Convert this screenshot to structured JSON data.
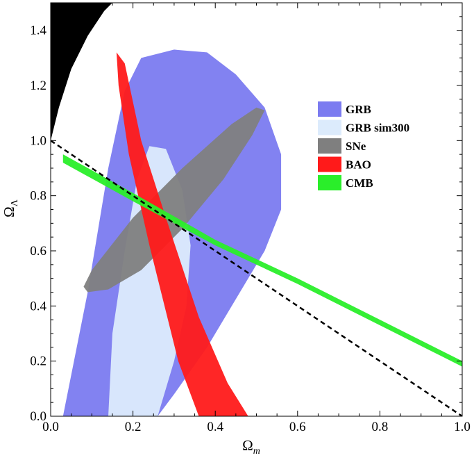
{
  "chart_data": {
    "type": "contour",
    "title": "",
    "xlabel": "Ω",
    "xlabel_sub": "m",
    "ylabel": "Ω",
    "ylabel_sub": "Λ",
    "xlim": [
      0.0,
      1.0
    ],
    "ylim": [
      0.0,
      1.5
    ],
    "x_ticks": [
      "0.0",
      "0.2",
      "0.4",
      "0.6",
      "0.8",
      "1.0"
    ],
    "y_ticks": [
      "0.0",
      "0.2",
      "0.4",
      "0.6",
      "0.8",
      "1.0",
      "1.2",
      "1.4"
    ],
    "grid": false,
    "legend_position": "right",
    "series": [
      {
        "name": "GRB",
        "color": "#7b7bf0",
        "points": [
          [
            0.03,
            0.0
          ],
          [
            0.09,
            0.45
          ],
          [
            0.14,
            0.9
          ],
          [
            0.18,
            1.18
          ],
          [
            0.22,
            1.3
          ],
          [
            0.3,
            1.33
          ],
          [
            0.38,
            1.32
          ],
          [
            0.45,
            1.24
          ],
          [
            0.52,
            1.12
          ],
          [
            0.56,
            0.95
          ],
          [
            0.56,
            0.75
          ],
          [
            0.52,
            0.6
          ],
          [
            0.46,
            0.45
          ],
          [
            0.38,
            0.25
          ],
          [
            0.3,
            0.08
          ],
          [
            0.26,
            0.0
          ]
        ]
      },
      {
        "name": "GRB sim300",
        "color": "#dcebfc",
        "points": [
          [
            0.14,
            0.0
          ],
          [
            0.15,
            0.3
          ],
          [
            0.18,
            0.6
          ],
          [
            0.21,
            0.86
          ],
          [
            0.24,
            0.98
          ],
          [
            0.28,
            0.97
          ],
          [
            0.32,
            0.82
          ],
          [
            0.34,
            0.62
          ],
          [
            0.33,
            0.4
          ],
          [
            0.3,
            0.2
          ],
          [
            0.26,
            0.0
          ]
        ]
      },
      {
        "name": "SNe",
        "color": "#7f7f7f",
        "points": [
          [
            0.09,
            0.45
          ],
          [
            0.14,
            0.46
          ],
          [
            0.22,
            0.53
          ],
          [
            0.32,
            0.68
          ],
          [
            0.42,
            0.86
          ],
          [
            0.49,
            1.02
          ],
          [
            0.52,
            1.11
          ],
          [
            0.5,
            1.12
          ],
          [
            0.44,
            1.06
          ],
          [
            0.32,
            0.9
          ],
          [
            0.2,
            0.72
          ],
          [
            0.1,
            0.53
          ],
          [
            0.08,
            0.47
          ]
        ]
      },
      {
        "name": "BAO",
        "color": "#ff1a1a",
        "points": [
          [
            0.16,
            1.32
          ],
          [
            0.18,
            1.28
          ],
          [
            0.22,
            1.0
          ],
          [
            0.28,
            0.72
          ],
          [
            0.36,
            0.36
          ],
          [
            0.43,
            0.12
          ],
          [
            0.48,
            0.0
          ],
          [
            0.36,
            0.0
          ],
          [
            0.31,
            0.2
          ],
          [
            0.24,
            0.62
          ],
          [
            0.19,
            0.95
          ],
          [
            0.165,
            1.2
          ]
        ]
      },
      {
        "name": "CMB",
        "color": "#2aee2a",
        "points": [
          [
            0.03,
            0.95
          ],
          [
            0.2,
            0.81
          ],
          [
            0.4,
            0.64
          ],
          [
            0.6,
            0.5
          ],
          [
            0.8,
            0.35
          ],
          [
            1.0,
            0.2
          ],
          [
            1.0,
            0.18
          ],
          [
            0.8,
            0.33
          ],
          [
            0.6,
            0.48
          ],
          [
            0.4,
            0.62
          ],
          [
            0.2,
            0.78
          ],
          [
            0.03,
            0.92
          ]
        ]
      }
    ],
    "closed_universe_region": {
      "color": "#000000",
      "points": [
        [
          0.0,
          1.5
        ],
        [
          0.0,
          1.0
        ],
        [
          0.02,
          1.12
        ],
        [
          0.05,
          1.26
        ],
        [
          0.09,
          1.38
        ],
        [
          0.13,
          1.47
        ],
        [
          0.15,
          1.5
        ]
      ]
    },
    "flat_line": {
      "style": "dashed",
      "color": "#000000",
      "points": [
        [
          0.0,
          1.0
        ],
        [
          1.0,
          0.0
        ]
      ]
    }
  }
}
